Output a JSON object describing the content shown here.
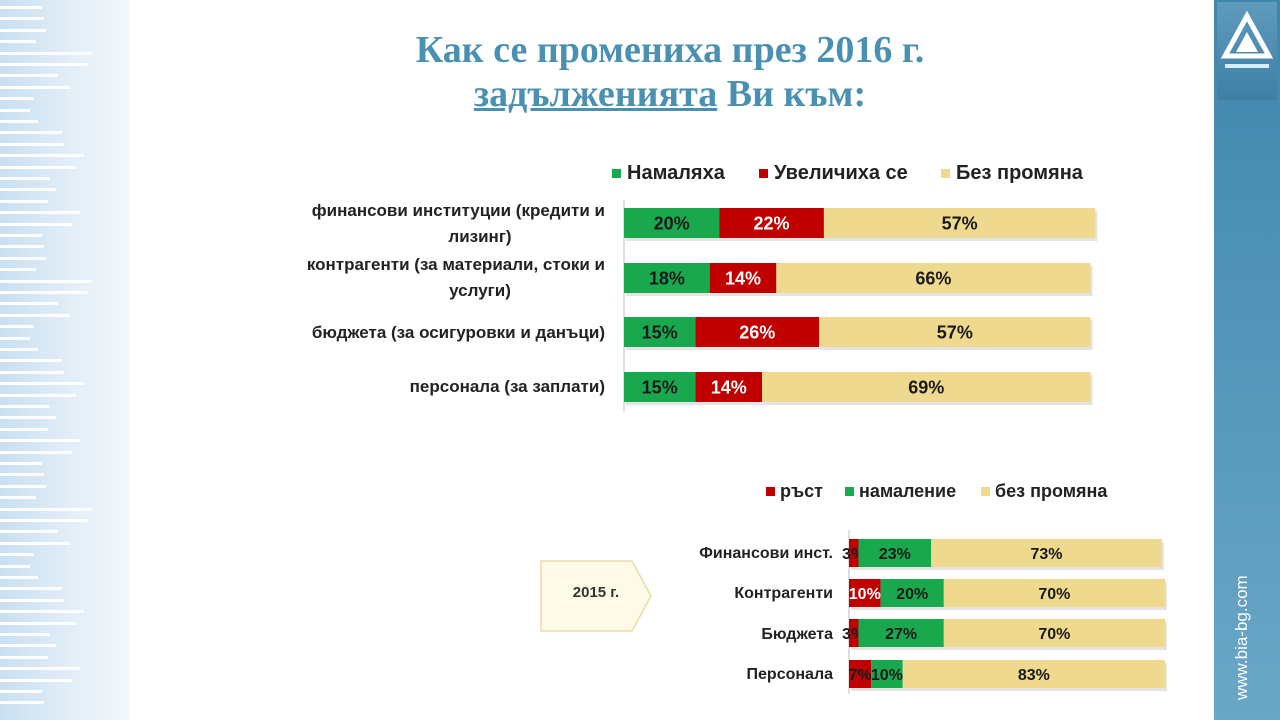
{
  "title": {
    "line1": "Как се промениха през 2016 г.",
    "line2_underlined": "задълженията",
    "line2_rest": " Ви към:"
  },
  "side_url": "www.bia-bg.com",
  "badge_2015": "2015 г.",
  "colors": {
    "green": "#1aa84f",
    "red": "#c00000",
    "cream": "#eed98e",
    "title": "#4a90b2",
    "sidebar": "#4d91b6"
  },
  "chart_data": [
    {
      "type": "bar",
      "orientation": "horizontal",
      "stacked": true,
      "year": "2016",
      "categories": [
        "финансови институции  (кредити и лизинг)",
        "контрагенти (за материали, стоки и услуги)",
        "бюджета (за осигуровки и данъци)",
        "персонала (за заплати)"
      ],
      "series": [
        {
          "name": "Намаляха",
          "color": "#1aa84f",
          "values": [
            20,
            18,
            15,
            15
          ],
          "labels": [
            "20%",
            "18%",
            "15%",
            "15%"
          ]
        },
        {
          "name": "Увеличиха се",
          "color": "#c00000",
          "values": [
            22,
            14,
            26,
            14
          ],
          "labels": [
            "22%",
            "14%",
            "26%",
            "14%"
          ]
        },
        {
          "name": "Без промяна",
          "color": "#eed98e",
          "values": [
            57,
            66,
            57,
            69
          ],
          "labels": [
            "57%",
            "66%",
            "57%",
            "69%"
          ]
        }
      ],
      "legend_position": "top",
      "unit": "%"
    },
    {
      "type": "bar",
      "orientation": "horizontal",
      "stacked": true,
      "year": "2015",
      "categories": [
        "Финансови инст.",
        "Контрагенти",
        "Бюджета",
        "Персонала"
      ],
      "series": [
        {
          "name": "ръст",
          "color": "#c00000",
          "values": [
            3,
            10,
            3,
            7
          ],
          "labels": [
            "3%",
            "10%",
            "3%",
            "7%"
          ]
        },
        {
          "name": "намаление",
          "color": "#1aa84f",
          "values": [
            23,
            20,
            27,
            10
          ],
          "labels": [
            "23%",
            "20%",
            "27%",
            "10%"
          ]
        },
        {
          "name": "без промяна",
          "color": "#eed98e",
          "values": [
            73,
            70,
            70,
            83
          ],
          "labels": [
            "73%",
            "70%",
            "70%",
            "83%"
          ]
        }
      ],
      "legend_position": "top",
      "unit": "%"
    }
  ]
}
